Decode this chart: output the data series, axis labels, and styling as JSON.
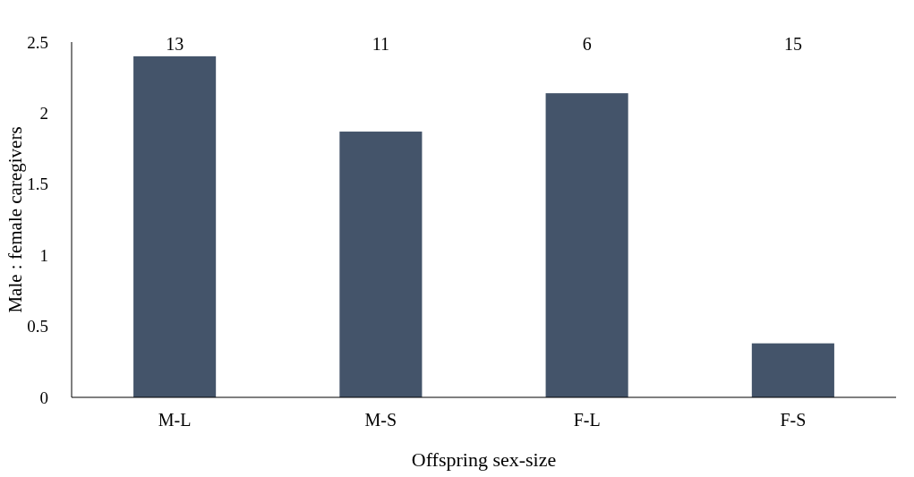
{
  "chart_data": {
    "type": "bar",
    "xlabel": "Offspring sex-size",
    "ylabel": "Male : female caregivers",
    "categories": [
      "M-L",
      "M-S",
      "F-L",
      "F-S"
    ],
    "values": [
      2.4,
      1.87,
      2.14,
      0.38
    ],
    "annotations": [
      "13",
      "11",
      "6",
      "15"
    ],
    "color": "#44546a",
    "ylim": [
      0,
      2.5
    ],
    "yticks": [
      0,
      0.5,
      1,
      1.5,
      2,
      2.5
    ],
    "grid": false
  }
}
